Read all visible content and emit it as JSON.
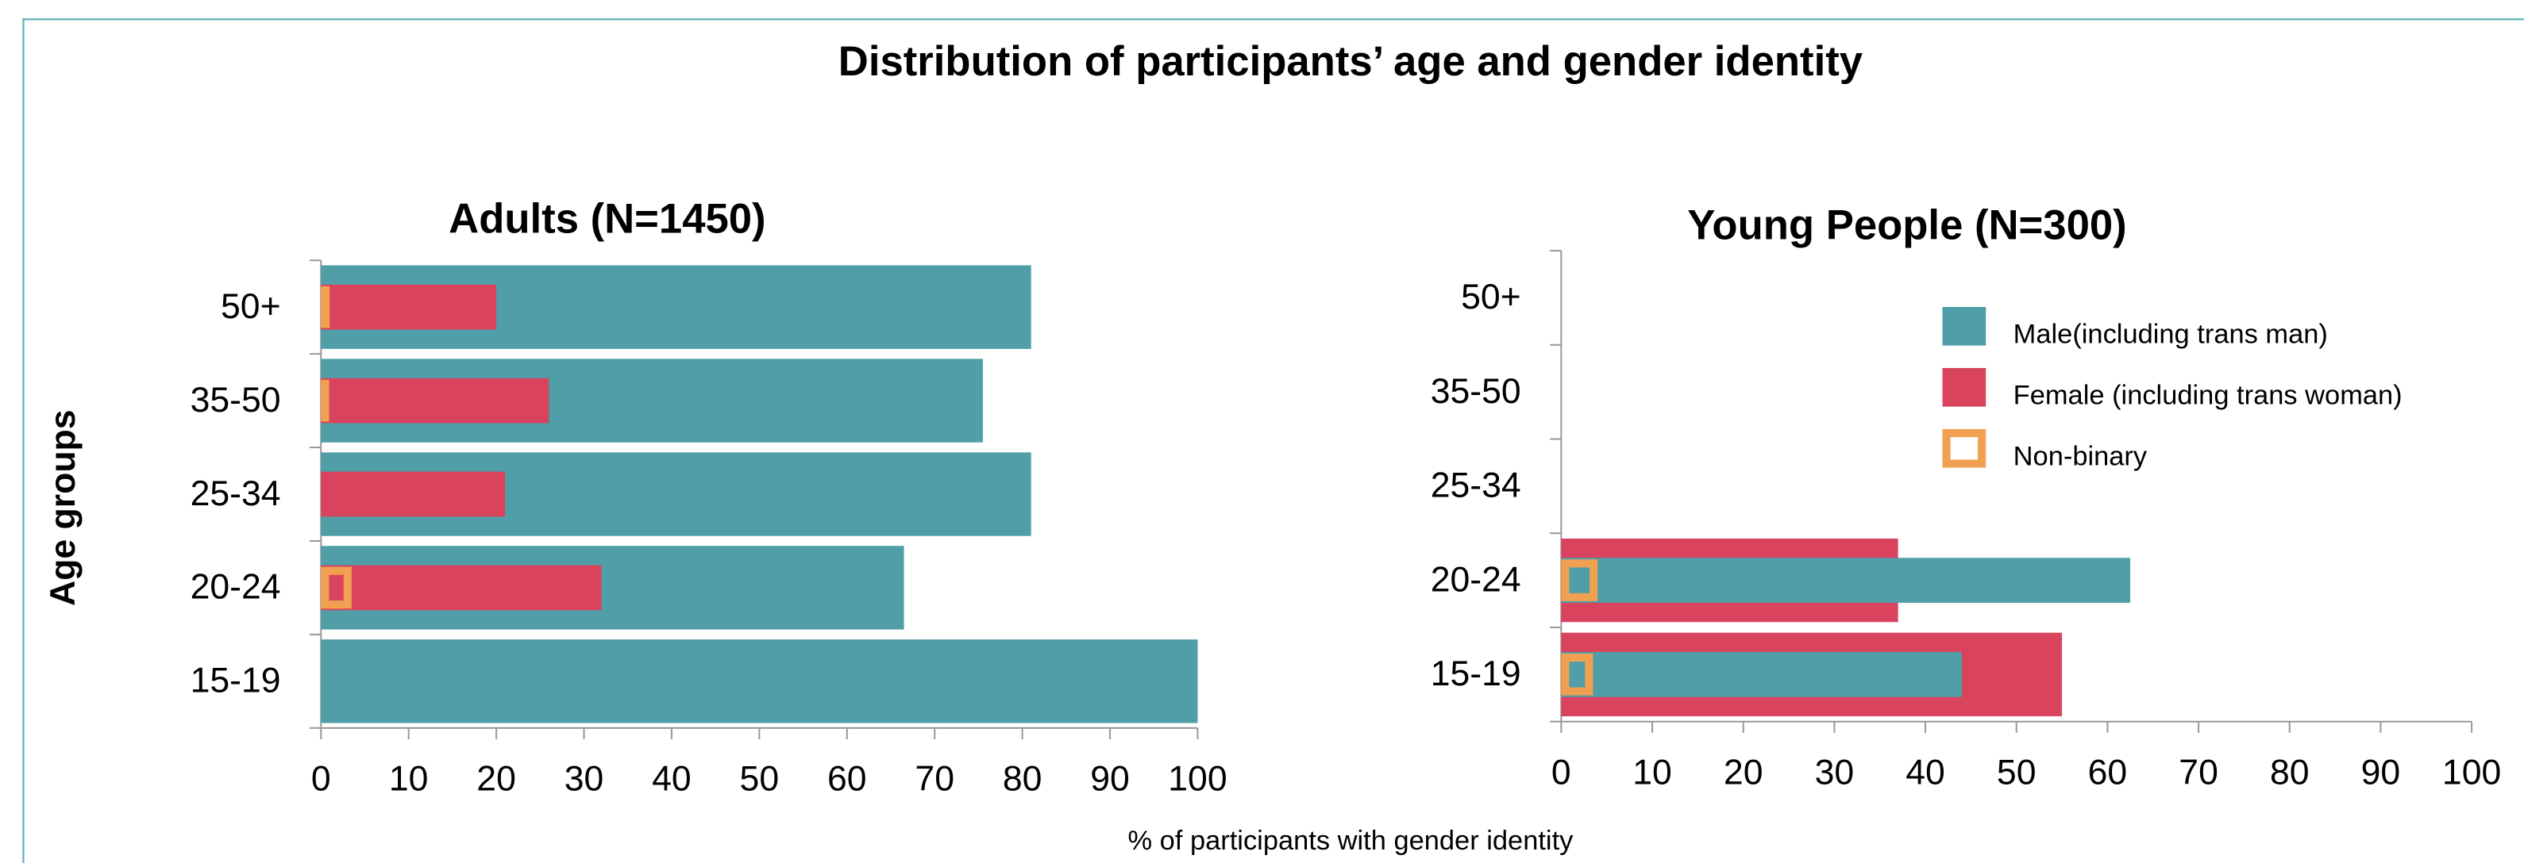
{
  "title": "Distribution of participants’ age and gender identity",
  "ylabel": "Age groups",
  "xlabel": "% of participants with gender identity",
  "chart_data": [
    {
      "type": "bar",
      "orientation": "horizontal",
      "title": "Adults (N=1450)",
      "categories": [
        "50+",
        "35-50",
        "25-34",
        "20-24",
        "15-19"
      ],
      "series": [
        {
          "name": "Male(including trans man)",
          "color": "#4f9ea8",
          "values": [
            81,
            75.5,
            81,
            66.5,
            100
          ]
        },
        {
          "name": "Female (including trans woman)",
          "color": "#d9435d",
          "values": [
            20,
            26,
            21,
            32,
            null
          ]
        },
        {
          "name": "Non-binary",
          "color": "#f0a050",
          "values": [
            1,
            0.8,
            null,
            3.5,
            null
          ]
        }
      ],
      "xlim": [
        0,
        100
      ],
      "xticks": [
        0,
        10,
        20,
        30,
        40,
        50,
        60,
        70,
        80,
        90,
        100
      ]
    },
    {
      "type": "bar",
      "orientation": "horizontal",
      "title": "Young People (N=300)",
      "categories": [
        "50+",
        "35-50",
        "25-34",
        "20-24",
        "15-19"
      ],
      "series": [
        {
          "name": "Female (including trans woman)",
          "color": "#d9435d",
          "values": [
            null,
            null,
            null,
            37,
            55
          ]
        },
        {
          "name": "Male(including trans man)",
          "color": "#4f9ea8",
          "values": [
            null,
            null,
            null,
            62.5,
            44
          ]
        },
        {
          "name": "Non-binary",
          "color": "#f0a050",
          "values": [
            null,
            null,
            null,
            4,
            3.5
          ]
        }
      ],
      "xlim": [
        0,
        100
      ],
      "xticks": [
        0,
        10,
        20,
        30,
        40,
        50,
        60,
        70,
        80,
        90,
        100
      ],
      "legend": "upper right"
    }
  ]
}
